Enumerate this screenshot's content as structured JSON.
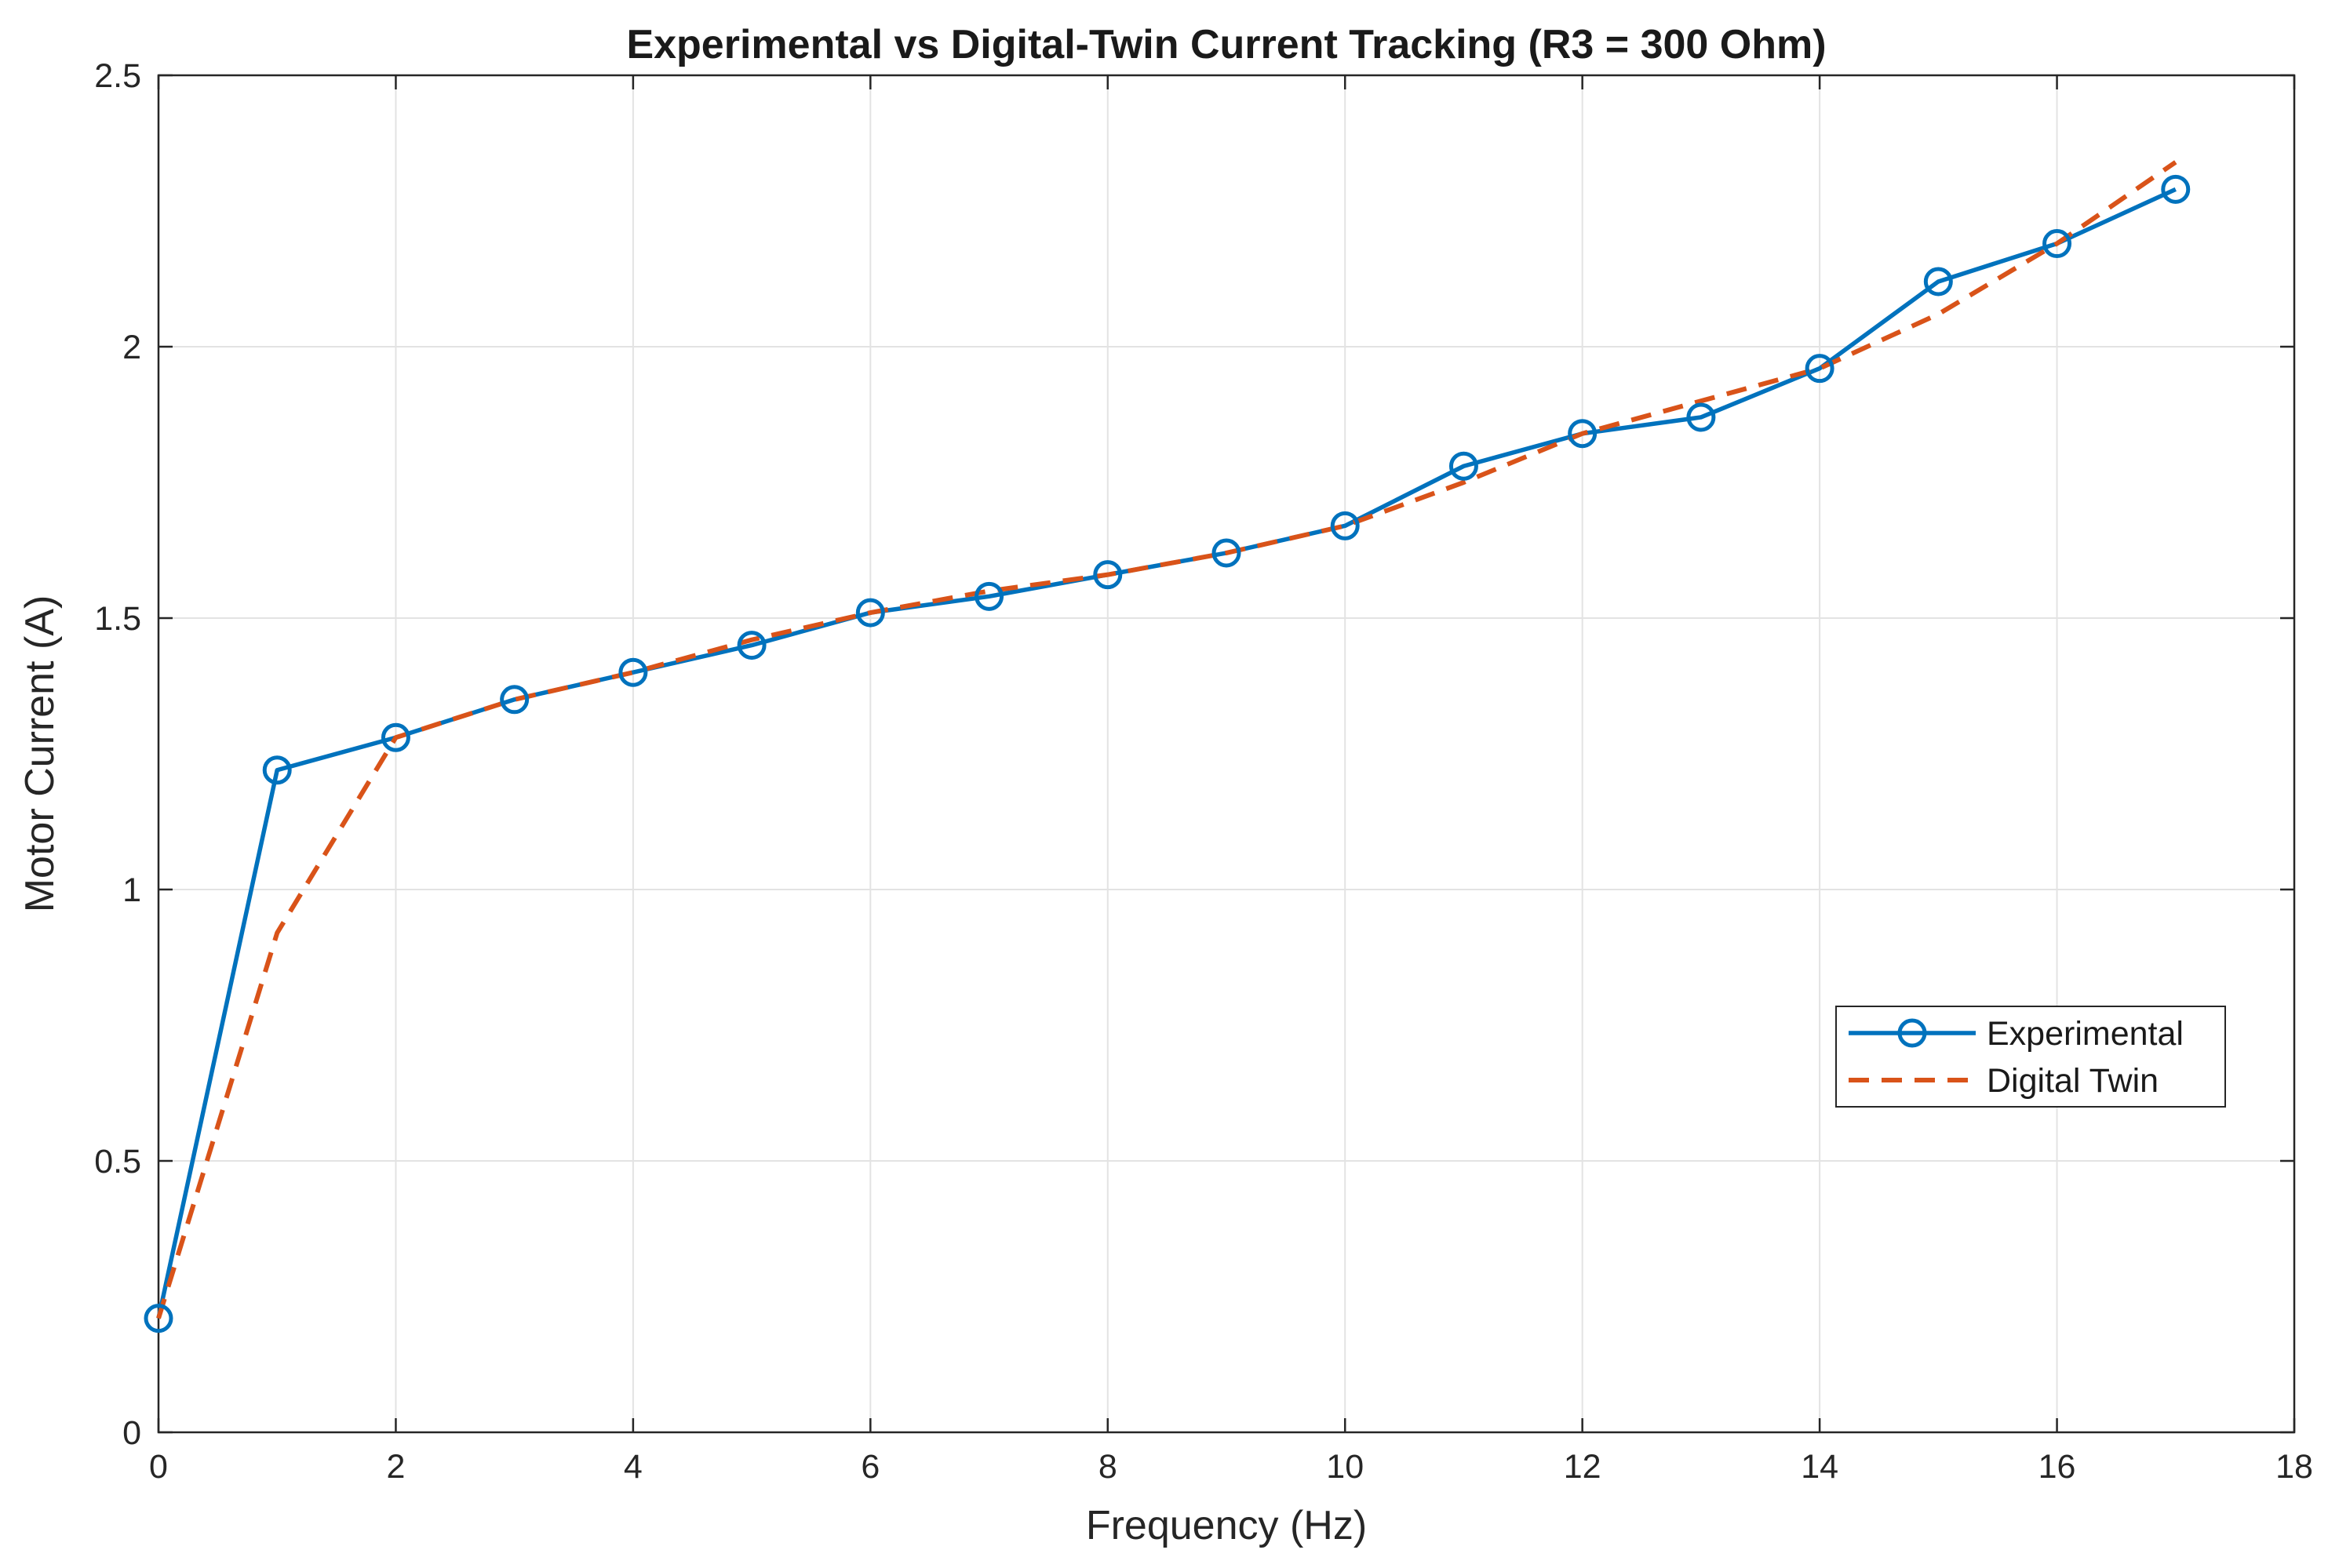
{
  "chart_data": {
    "type": "line",
    "title": "Experimental vs Digital-Twin Current Tracking (R3 = 300 Ohm)",
    "xlabel": "Frequency (Hz)",
    "ylabel": "Motor Current (A)",
    "xlim": [
      0,
      18
    ],
    "ylim": [
      0,
      2.5
    ],
    "xticks": [
      0,
      2,
      4,
      6,
      8,
      10,
      12,
      14,
      16,
      18
    ],
    "yticks": [
      0,
      0.5,
      1,
      1.5,
      2,
      2.5
    ],
    "xtick_labels": [
      "0",
      "2",
      "4",
      "6",
      "8",
      "10",
      "12",
      "14",
      "16",
      "18"
    ],
    "ytick_labels": [
      "0",
      "0.5",
      "1",
      "1.5",
      "2",
      "2.5"
    ],
    "grid": true,
    "legend_position": "center-right",
    "series": [
      {
        "name": "Experimental",
        "color": "#0072BD",
        "style": "solid-with-circle-markers",
        "x": [
          0,
          1,
          2,
          3,
          4,
          5,
          6,
          7,
          8,
          9,
          10,
          11,
          12,
          13,
          14,
          15,
          16,
          17
        ],
        "y": [
          0.21,
          1.22,
          1.28,
          1.35,
          1.4,
          1.45,
          1.51,
          1.54,
          1.58,
          1.62,
          1.67,
          1.78,
          1.84,
          1.87,
          1.96,
          2.12,
          2.19,
          2.29
        ]
      },
      {
        "name": "Digital Twin",
        "color": "#D95319",
        "style": "dashed",
        "x": [
          0,
          1,
          2,
          3,
          4,
          5,
          6,
          7,
          8,
          9,
          10,
          11,
          12,
          13,
          14,
          15,
          16,
          17
        ],
        "y": [
          0.21,
          0.92,
          1.28,
          1.35,
          1.4,
          1.46,
          1.51,
          1.55,
          1.58,
          1.62,
          1.67,
          1.75,
          1.84,
          1.9,
          1.96,
          2.06,
          2.19,
          2.34
        ]
      }
    ]
  }
}
